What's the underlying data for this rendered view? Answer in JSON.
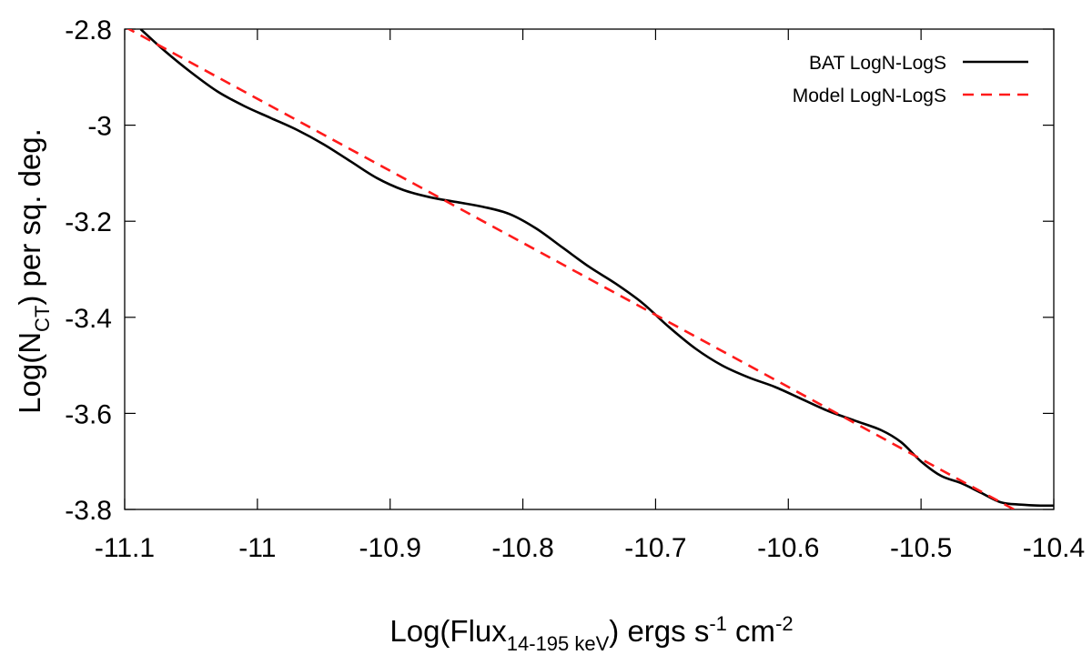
{
  "chart_data": {
    "type": "line",
    "title": "",
    "xlabel": {
      "prefix": "Log(Flux",
      "sub": "14-195 keV",
      "suffix": ") ergs s",
      "sup1": "-1",
      "mid": " cm",
      "sup2": "-2"
    },
    "ylabel": {
      "prefix": "Log(N",
      "sub": "CT",
      "suffix": ") per sq. deg."
    },
    "xlim": [
      -11.1,
      -10.4
    ],
    "ylim": [
      -3.8,
      -2.8
    ],
    "xticks": [
      {
        "value": -11.1,
        "label": "-11.1"
      },
      {
        "value": -11.0,
        "label": "-11"
      },
      {
        "value": -10.9,
        "label": "-10.9"
      },
      {
        "value": -10.8,
        "label": "-10.8"
      },
      {
        "value": -10.7,
        "label": "-10.7"
      },
      {
        "value": -10.6,
        "label": "-10.6"
      },
      {
        "value": -10.5,
        "label": "-10.5"
      },
      {
        "value": -10.4,
        "label": "-10.4"
      }
    ],
    "yticks": [
      {
        "value": -2.8,
        "label": "-2.8"
      },
      {
        "value": -3.0,
        "label": "-3"
      },
      {
        "value": -3.2,
        "label": "-3.2"
      },
      {
        "value": -3.4,
        "label": "-3.4"
      },
      {
        "value": -3.6,
        "label": "-3.6"
      },
      {
        "value": -3.8,
        "label": "-3.8"
      }
    ],
    "legend_position": "top-right",
    "series": [
      {
        "name": "BAT LogN-LogS",
        "color": "#000000",
        "dash": "solid",
        "x": [
          -11.088,
          -11.07,
          -11.05,
          -11.03,
          -11.01,
          -10.99,
          -10.97,
          -10.95,
          -10.93,
          -10.91,
          -10.89,
          -10.87,
          -10.85,
          -10.83,
          -10.81,
          -10.79,
          -10.77,
          -10.75,
          -10.73,
          -10.71,
          -10.69,
          -10.67,
          -10.65,
          -10.63,
          -10.61,
          -10.59,
          -10.57,
          -10.55,
          -10.53,
          -10.515,
          -10.5,
          -10.485,
          -10.47,
          -10.455,
          -10.44,
          -10.425,
          -10.41,
          -10.4
        ],
        "y": [
          -2.8,
          -2.845,
          -2.89,
          -2.93,
          -2.96,
          -2.985,
          -3.01,
          -3.04,
          -3.075,
          -3.11,
          -3.135,
          -3.15,
          -3.16,
          -3.17,
          -3.185,
          -3.215,
          -3.255,
          -3.295,
          -3.33,
          -3.37,
          -3.42,
          -3.465,
          -3.5,
          -3.525,
          -3.545,
          -3.57,
          -3.595,
          -3.615,
          -3.635,
          -3.66,
          -3.7,
          -3.73,
          -3.745,
          -3.765,
          -3.785,
          -3.79,
          -3.792,
          -3.792
        ]
      },
      {
        "name": "Model LogN-LogS",
        "color": "#ff1a1a",
        "dash": "dashed",
        "x": [
          -11.1,
          -10.43
        ],
        "y": [
          -2.795,
          -3.8
        ]
      }
    ]
  }
}
